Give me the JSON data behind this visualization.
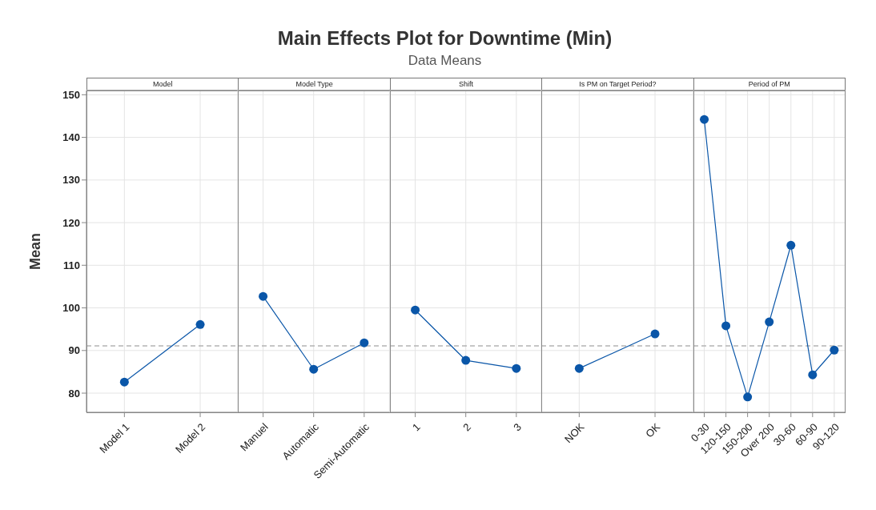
{
  "chart_data": [
    {
      "type": "line",
      "ylabel": "Mean",
      "xlabel": "Model",
      "categories": [
        "Model 1",
        "Model 2"
      ],
      "values": [
        82.6,
        96.1
      ],
      "color": "#0a56a8",
      "ylim": [
        75.5,
        151
      ],
      "yticks": [
        80,
        90,
        100,
        110,
        120,
        130,
        140,
        150
      ],
      "grid": true,
      "marker": "circle",
      "line_style": "solid",
      "ref_lines": [
        {
          "axis": "y",
          "value": 91.1,
          "line_style": "dashed",
          "color": "#b4b4b4"
        }
      ]
    },
    {
      "type": "line",
      "xlabel": "Model Type",
      "categories": [
        "Manuel",
        "Automatic",
        "Semi-Automatic"
      ],
      "values": [
        102.7,
        85.6,
        91.8
      ],
      "color": "#0a56a8",
      "ylim": [
        75.5,
        151
      ],
      "yticks": [
        80,
        90,
        100,
        110,
        120,
        130,
        140,
        150
      ],
      "tick_labels": "x",
      "grid": true,
      "marker": "circle",
      "line_style": "solid",
      "ref_lines": [
        {
          "axis": "y",
          "value": 91.1,
          "line_style": "dashed",
          "color": "#b4b4b4"
        }
      ]
    },
    {
      "type": "line",
      "title": "Main Effects Plot for Downtime (Min)",
      "subtitle": "Data Means",
      "xlabel": "Shift",
      "categories": [
        "1",
        "2",
        "3"
      ],
      "values": [
        99.5,
        87.7,
        85.8
      ],
      "color": "#0a56a8",
      "ylim": [
        75.5,
        151
      ],
      "yticks": [
        80,
        90,
        100,
        110,
        120,
        130,
        140,
        150
      ],
      "tick_labels": "x",
      "grid": true,
      "marker": "circle",
      "line_style": "solid",
      "ref_lines": [
        {
          "axis": "y",
          "value": 91.1,
          "line_style": "dashed",
          "color": "#b4b4b4"
        }
      ]
    },
    {
      "type": "line",
      "xlabel": "Is PM on Target Period?",
      "categories": [
        "NOK",
        "OK"
      ],
      "values": [
        85.8,
        93.9
      ],
      "color": "#0a56a8",
      "ylim": [
        75.5,
        151
      ],
      "yticks": [
        80,
        90,
        100,
        110,
        120,
        130,
        140,
        150
      ],
      "tick_labels": "x",
      "grid": true,
      "marker": "circle",
      "line_style": "solid",
      "ref_lines": [
        {
          "axis": "y",
          "value": 91.1,
          "line_style": "dashed",
          "color": "#b4b4b4"
        }
      ]
    },
    {
      "type": "line",
      "xlabel": "Period of PM",
      "categories": [
        "0-30",
        "120-150",
        "150-200",
        "Over 200",
        "30-60",
        "60-90",
        "90-120"
      ],
      "values": [
        144.2,
        95.8,
        79.1,
        96.7,
        114.7,
        84.3,
        90.1
      ],
      "color": "#0a56a8",
      "ylim": [
        75.5,
        151
      ],
      "yticks": [
        80,
        90,
        100,
        110,
        120,
        130,
        140,
        150
      ],
      "tick_labels": "x",
      "grid": true,
      "marker": "circle",
      "line_style": "solid",
      "ref_lines": [
        {
          "axis": "y",
          "value": 91.1,
          "line_style": "dashed",
          "color": "#b4b4b4"
        }
      ]
    }
  ]
}
